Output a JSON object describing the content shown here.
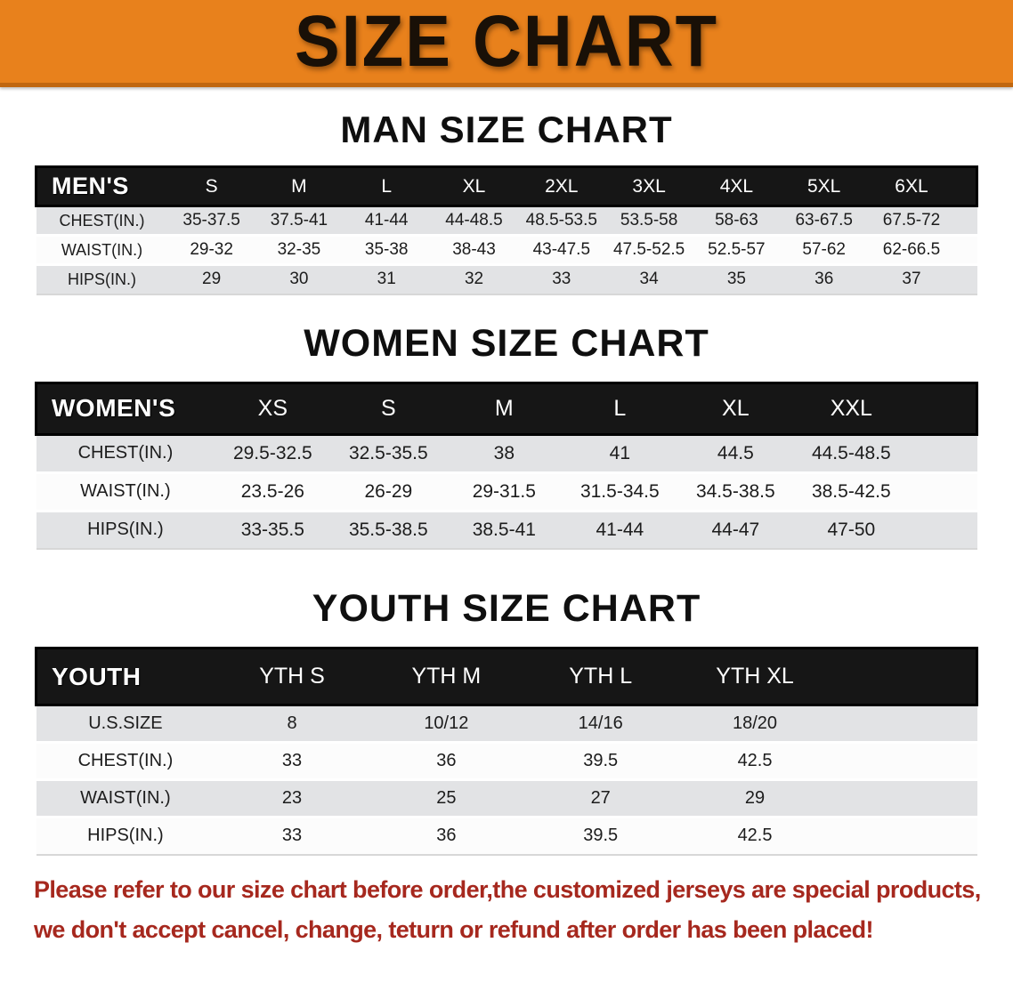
{
  "banner": {
    "title": "SIZE CHART"
  },
  "colors": {
    "banner_bg": "#E8811C",
    "banner_border": "#C06710",
    "header_bg": "#161616",
    "header_text": "#FFFFFF",
    "row_gray": "#E2E3E5",
    "row_white": "#FCFCFC",
    "text": "#1C1C1C",
    "footer_red": "#A6281E"
  },
  "sections": [
    {
      "title": "MAN SIZE CHART",
      "header_label": "MEN'S",
      "columns": [
        "S",
        "M",
        "L",
        "XL",
        "2XL",
        "3XL",
        "4XL",
        "5XL",
        "6XL"
      ],
      "rows": [
        {
          "label": "CHEST(IN.)",
          "values": [
            "35-37.5",
            "37.5-41",
            "41-44",
            "44-48.5",
            "48.5-53.5",
            "53.5-58",
            "58-63",
            "63-67.5",
            "67.5-72"
          ]
        },
        {
          "label": "WAIST(IN.)",
          "values": [
            "29-32",
            "32-35",
            "35-38",
            "38-43",
            "43-47.5",
            "47.5-52.5",
            "52.5-57",
            "57-62",
            "62-66.5"
          ]
        },
        {
          "label": "HIPS(IN.)",
          "values": [
            "29",
            "30",
            "31",
            "32",
            "33",
            "34",
            "35",
            "36",
            "37"
          ]
        }
      ]
    },
    {
      "title": "WOMEN SIZE CHART",
      "header_label": "WOMEN'S",
      "columns": [
        "XS",
        "S",
        "M",
        "L",
        "XL",
        "XXL"
      ],
      "rows": [
        {
          "label": "CHEST(IN.)",
          "values": [
            "29.5-32.5",
            "32.5-35.5",
            "38",
            "41",
            "44.5",
            "44.5-48.5"
          ]
        },
        {
          "label": "WAIST(IN.)",
          "values": [
            "23.5-26",
            "26-29",
            "29-31.5",
            "31.5-34.5",
            "34.5-38.5",
            "38.5-42.5"
          ]
        },
        {
          "label": "HIPS(IN.)",
          "values": [
            "33-35.5",
            "35.5-38.5",
            "38.5-41",
            "41-44",
            "44-47",
            "47-50"
          ]
        }
      ]
    },
    {
      "title": "YOUTH SIZE CHART",
      "header_label": "YOUTH",
      "columns": [
        "YTH S",
        "YTH M",
        "YTH L",
        "YTH XL"
      ],
      "rows": [
        {
          "label": "U.S.SIZE",
          "values": [
            "8",
            "10/12",
            "14/16",
            "18/20"
          ]
        },
        {
          "label": "CHEST(IN.)",
          "values": [
            "33",
            "36",
            "39.5",
            "42.5"
          ]
        },
        {
          "label": "WAIST(IN.)",
          "values": [
            "23",
            "25",
            "27",
            "29"
          ]
        },
        {
          "label": "HIPS(IN.)",
          "values": [
            "33",
            "36",
            "39.5",
            "42.5"
          ]
        }
      ]
    }
  ],
  "footer": {
    "line1": "Please refer to our size chart before order,the customized jerseys are special products,",
    "line2": "we don't accept cancel, change, teturn or refund after order has been placed!"
  }
}
